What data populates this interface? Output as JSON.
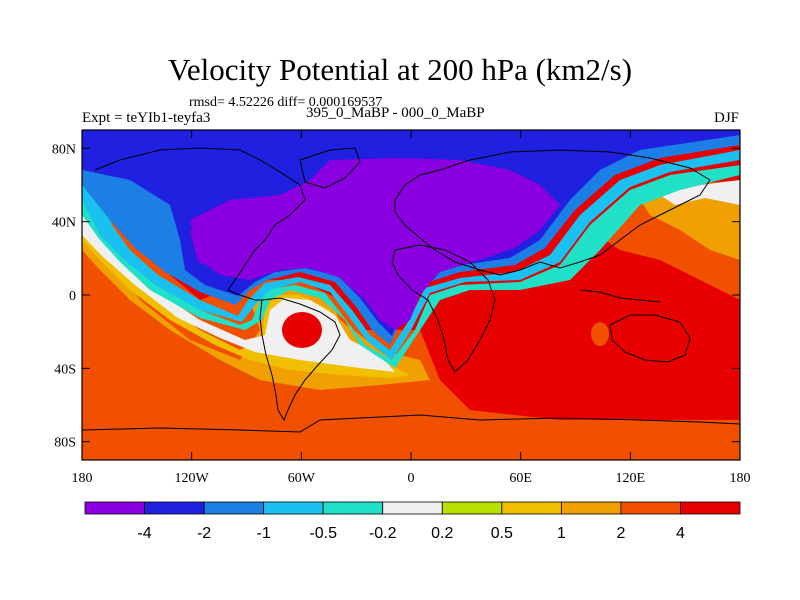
{
  "chart_data": {
    "type": "heatmap",
    "title": "Velocity Potential at 200 hPa (km2/s)",
    "stats": "rmsd= 4.52226 diff= 0.000169537",
    "left_label": "Expt = teYIb1-teyfa3",
    "center_label": "395_0_MaBP - 000_0_MaBP",
    "right_label": "DJF",
    "x_range": [
      -180,
      180
    ],
    "y_range": [
      -90,
      90
    ],
    "x_ticks": [
      {
        "value": -180,
        "label": "180"
      },
      {
        "value": -120,
        "label": "120W"
      },
      {
        "value": -60,
        "label": "60W"
      },
      {
        "value": 0,
        "label": "0"
      },
      {
        "value": 60,
        "label": "60E"
      },
      {
        "value": 120,
        "label": "120E"
      },
      {
        "value": 180,
        "label": "180"
      }
    ],
    "y_ticks": [
      {
        "value": 80,
        "label": "80N"
      },
      {
        "value": 40,
        "label": "40N"
      },
      {
        "value": 0,
        "label": "0"
      },
      {
        "value": -40,
        "label": "40S"
      },
      {
        "value": -80,
        "label": "80S"
      }
    ],
    "colorbar": {
      "levels": [
        "-4",
        "-2",
        "-1",
        "-0.5",
        "-0.2",
        "0.2",
        "0.5",
        "1",
        "2",
        "4"
      ],
      "colors": [
        "#8a00e0",
        "#2020e0",
        "#1c7fe6",
        "#1ac0f0",
        "#20e0c8",
        "#f0f0f0",
        "#b8e000",
        "#f0c000",
        "#f0a000",
        "#f05000",
        "#e80000"
      ]
    }
  }
}
